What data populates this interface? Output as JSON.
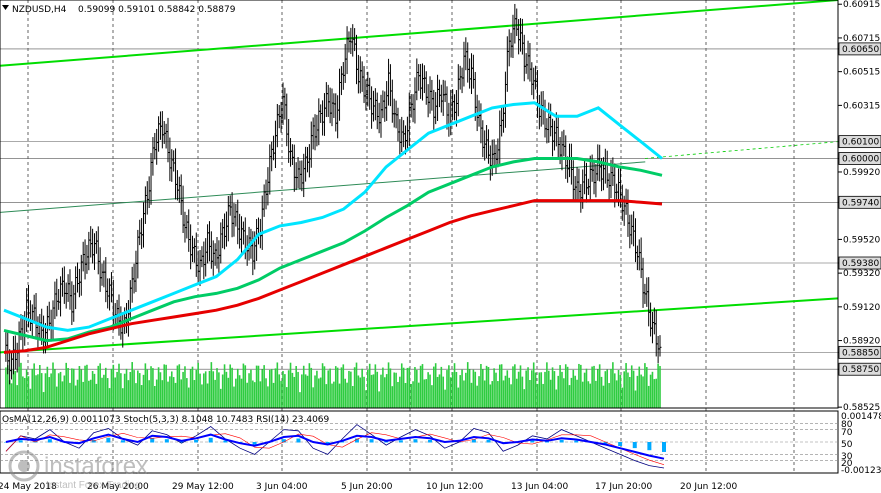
{
  "window": {
    "title": "NZDUSD,H4",
    "ohlc": "0.59099 0.59101 0.58842 0.58879",
    "indicator_line": "OsMA(12,26,9) 0.0011073 Stoch(5,3,3) 8.1048 10.7483 RSI(14) 23.4069",
    "watermark": "instaforex",
    "watermark_sub": "Instant Forex Trading"
  },
  "chart_data": [
    {
      "type": "line",
      "title": "NZDUSD,H4",
      "y_axis_labels": [
        "0.60915",
        "0.60715",
        "0.60650",
        "0.60515",
        "0.60315",
        "0.60100",
        "0.60000",
        "0.59920",
        "0.59740",
        "0.59520",
        "0.59380",
        "0.59320",
        "0.59120",
        "0.58920",
        "0.58850",
        "0.58750",
        "0.58525"
      ],
      "highlighted_levels": [
        {
          "label": "0.60650",
          "value": 0.6065
        },
        {
          "label": "0.60100",
          "value": 0.601
        },
        {
          "label": "0.60000",
          "value": 0.6
        },
        {
          "label": "0.59740",
          "value": 0.5974
        },
        {
          "label": "0.59380",
          "value": 0.5938
        },
        {
          "label": "0.58850",
          "value": 0.5885
        },
        {
          "label": "0.58750",
          "value": 0.5875
        }
      ],
      "x_axis_labels": [
        "24 May 2018",
        "26 May 20:00",
        "29 May 12:00",
        "3 Jun 04:00",
        "5 Jun 20:00",
        "10 Jun 12:00",
        "13 Jun 04:00",
        "17 Jun 20:00",
        "20 Jun 12:00"
      ],
      "ylim": [
        0.5852,
        0.6094
      ],
      "price_path": [
        0.5885,
        0.5878,
        0.5892,
        0.591,
        0.5906,
        0.5895,
        0.5902,
        0.5918,
        0.5925,
        0.5915,
        0.5932,
        0.5945,
        0.595,
        0.593,
        0.592,
        0.5905,
        0.59,
        0.5925,
        0.5955,
        0.5978,
        0.601,
        0.602,
        0.6,
        0.5985,
        0.596,
        0.5945,
        0.5935,
        0.595,
        0.594,
        0.5955,
        0.597,
        0.596,
        0.595,
        0.5945,
        0.596,
        0.599,
        0.6015,
        0.6035,
        0.6,
        0.5988,
        0.5995,
        0.6015,
        0.6025,
        0.6035,
        0.6025,
        0.6055,
        0.6075,
        0.605,
        0.604,
        0.603,
        0.6025,
        0.6045,
        0.602,
        0.601,
        0.603,
        0.605,
        0.604,
        0.603,
        0.604,
        0.6025,
        0.6035,
        0.606,
        0.605,
        0.602,
        0.6005,
        0.5998,
        0.602,
        0.607,
        0.608,
        0.606,
        0.605,
        0.603,
        0.602,
        0.6015,
        0.6005,
        0.5995,
        0.598,
        0.5985,
        0.599,
        0.5995,
        0.599,
        0.5985,
        0.5975,
        0.596,
        0.5945,
        0.592,
        0.59,
        0.5888
      ],
      "ma_series": [
        {
          "color": "#00e5ff",
          "values": [
            0.591,
            0.5905,
            0.59,
            0.5898,
            0.59,
            0.5905,
            0.591,
            0.5915,
            0.592,
            0.5925,
            0.593,
            0.594,
            0.5955,
            0.596,
            0.5962,
            0.5965,
            0.597,
            0.598,
            0.5995,
            0.6005,
            0.6015,
            0.602,
            0.6025,
            0.603,
            0.6032,
            0.6033,
            0.6025,
            0.6025,
            0.603,
            0.602,
            0.601,
            0.6
          ]
        },
        {
          "color": "#00cc66",
          "values": [
            0.5898,
            0.5895,
            0.5892,
            0.5893,
            0.5897,
            0.59,
            0.5905,
            0.591,
            0.5915,
            0.5918,
            0.592,
            0.5923,
            0.5928,
            0.5935,
            0.594,
            0.5945,
            0.595,
            0.5957,
            0.5965,
            0.5972,
            0.598,
            0.5985,
            0.599,
            0.5995,
            0.5998,
            0.6,
            0.6,
            0.6,
            0.5998,
            0.5995,
            0.5993,
            0.599
          ]
        },
        {
          "color": "#e60000",
          "values": [
            0.5885,
            0.5886,
            0.5888,
            0.5892,
            0.5896,
            0.5899,
            0.5902,
            0.5904,
            0.5906,
            0.5908,
            0.591,
            0.5913,
            0.5917,
            0.5922,
            0.5927,
            0.5932,
            0.5937,
            0.5942,
            0.5947,
            0.5952,
            0.5957,
            0.5962,
            0.5966,
            0.5969,
            0.5972,
            0.5975,
            0.5975,
            0.5975,
            0.5975,
            0.5975,
            0.5974,
            0.5973
          ]
        }
      ],
      "channel_lines": [
        {
          "color": "#00dd00",
          "from": [
            0,
            0.6055
          ],
          "to": [
            1,
            0.6094
          ]
        },
        {
          "color": "#00dd00",
          "from": [
            0,
            0.5885
          ],
          "to": [
            1,
            0.5917
          ]
        },
        {
          "color": "#2e8b57",
          "from": [
            0,
            0.5968
          ],
          "to": [
            0.77,
            0.5998
          ]
        }
      ]
    },
    {
      "type": "line",
      "title": "OsMA(12,26,9) 0.0011073 Stoch(5,3,3) 8.1048 10.7483 RSI(14) 23.4069",
      "y_axis_labels": [
        "0.001478",
        "80",
        "70",
        "50",
        "30",
        "20",
        "-0.001237"
      ],
      "ylim": [
        0,
        100
      ],
      "levels": [
        80,
        70,
        50,
        30,
        20
      ],
      "stoch": [
        35,
        60,
        55,
        70,
        50,
        40,
        65,
        72,
        55,
        45,
        68,
        62,
        48,
        60,
        75,
        55,
        40,
        30,
        50,
        70,
        68,
        40,
        30,
        55,
        78,
        62,
        45,
        58,
        70,
        60,
        40,
        50,
        72,
        65,
        35,
        45,
        60,
        55,
        70,
        60,
        50,
        40,
        30,
        20,
        12,
        8
      ],
      "rsi": [
        50,
        55,
        53,
        58,
        50,
        48,
        56,
        62,
        55,
        50,
        60,
        58,
        52,
        56,
        62,
        54,
        48,
        44,
        50,
        58,
        60,
        50,
        46,
        52,
        60,
        58,
        52,
        55,
        58,
        56,
        50,
        52,
        58,
        56,
        48,
        50,
        54,
        52,
        56,
        54,
        50,
        46,
        40,
        34,
        28,
        23
      ]
    }
  ]
}
